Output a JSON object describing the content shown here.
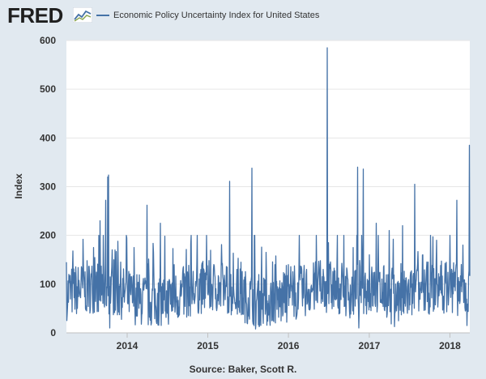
{
  "header": {
    "logo": "FRED",
    "logo_icon": "fred-chart-logo-icon",
    "legend_label": "Economic Policy Uncertainty Index for United States"
  },
  "footer": {
    "source": "Source: Baker, Scott R."
  },
  "colors": {
    "series": "#4572a7",
    "background": "#e1e9f0",
    "plot": "#ffffff",
    "grid": "#e6e6e6"
  },
  "chart_data": {
    "type": "line",
    "title": "",
    "xlabel": "",
    "ylabel": "Index",
    "ylim": [
      0,
      600
    ],
    "yticks": [
      0,
      100,
      200,
      300,
      400,
      500,
      600
    ],
    "xlim": [
      "2013-04-01",
      "2018-04-01"
    ],
    "xticks": [
      {
        "label": "2014",
        "date": "2014-01-01"
      },
      {
        "label": "2015",
        "date": "2015-01-01"
      },
      {
        "label": "2016",
        "date": "2016-01-01"
      },
      {
        "label": "2017",
        "date": "2017-01-01"
      },
      {
        "label": "2018",
        "date": "2018-01-01"
      }
    ],
    "grid": true,
    "legend_position": "top",
    "series": [
      {
        "name": "Economic Policy Uncertainty Index for United States",
        "frequency": "daily",
        "values_note": "dense daily series; key observations listed",
        "points": [
          [
            "2013-04-01",
            145
          ],
          [
            "2013-04-05",
            40
          ],
          [
            "2013-04-12",
            120
          ],
          [
            "2013-05-01",
            168
          ],
          [
            "2013-05-20",
            50
          ],
          [
            "2013-06-15",
            192
          ],
          [
            "2013-07-01",
            45
          ],
          [
            "2013-08-01",
            175
          ],
          [
            "2013-09-01",
            230
          ],
          [
            "2013-09-25",
            272
          ],
          [
            "2013-10-05",
            320
          ],
          [
            "2013-10-08",
            324
          ],
          [
            "2013-10-15",
            10
          ],
          [
            "2013-11-01",
            150
          ],
          [
            "2013-12-01",
            95
          ],
          [
            "2014-01-01",
            110
          ],
          [
            "2014-02-01",
            175
          ],
          [
            "2014-03-01",
            60
          ],
          [
            "2014-04-01",
            262
          ],
          [
            "2014-05-01",
            165
          ],
          [
            "2014-06-01",
            225
          ],
          [
            "2014-07-01",
            40
          ],
          [
            "2014-08-01",
            140
          ],
          [
            "2014-09-01",
            75
          ],
          [
            "2014-10-01",
            125
          ],
          [
            "2014-11-01",
            60
          ],
          [
            "2014-12-01",
            130
          ],
          [
            "2015-01-01",
            80
          ],
          [
            "2015-02-01",
            120
          ],
          [
            "2015-03-01",
            55
          ],
          [
            "2015-04-10",
            311
          ],
          [
            "2015-05-01",
            70
          ],
          [
            "2015-06-01",
            145
          ],
          [
            "2015-07-01",
            40
          ],
          [
            "2015-07-20",
            338
          ],
          [
            "2015-08-05",
            8
          ],
          [
            "2015-09-01",
            176
          ],
          [
            "2015-10-01",
            60
          ],
          [
            "2015-11-01",
            140
          ],
          [
            "2015-12-01",
            70
          ],
          [
            "2016-01-01",
            140
          ],
          [
            "2016-02-01",
            55
          ],
          [
            "2016-03-01",
            130
          ],
          [
            "2016-04-01",
            60
          ],
          [
            "2016-05-01",
            125
          ],
          [
            "2016-06-01",
            70
          ],
          [
            "2016-06-24",
            585
          ],
          [
            "2016-07-01",
            185
          ],
          [
            "2016-08-01",
            90
          ],
          [
            "2016-09-01",
            130
          ],
          [
            "2016-10-01",
            70
          ],
          [
            "2016-11-09",
            340
          ],
          [
            "2016-11-15",
            10
          ],
          [
            "2016-12-05",
            336
          ],
          [
            "2017-01-01",
            160
          ],
          [
            "2017-02-01",
            225
          ],
          [
            "2017-03-01",
            60
          ],
          [
            "2017-04-01",
            210
          ],
          [
            "2017-05-01",
            100
          ],
          [
            "2017-06-01",
            220
          ],
          [
            "2017-07-01",
            80
          ],
          [
            "2017-07-25",
            305
          ],
          [
            "2017-08-15",
            90
          ],
          [
            "2017-09-01",
            160
          ],
          [
            "2017-10-01",
            70
          ],
          [
            "2017-11-01",
            190
          ],
          [
            "2017-12-01",
            60
          ],
          [
            "2018-01-01",
            200
          ],
          [
            "2018-01-20",
            100
          ],
          [
            "2018-02-01",
            272
          ],
          [
            "2018-02-15",
            60
          ],
          [
            "2018-03-01",
            180
          ],
          [
            "2018-03-20",
            15
          ],
          [
            "2018-03-30",
            385
          ]
        ]
      }
    ]
  }
}
